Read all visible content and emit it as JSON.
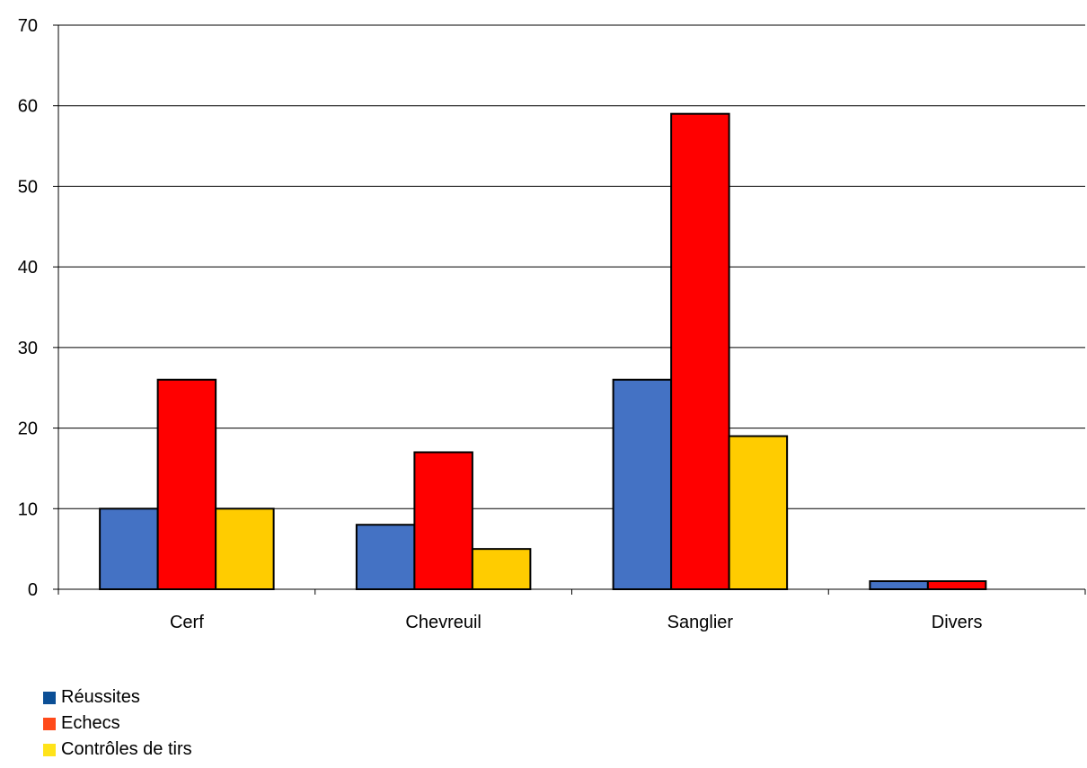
{
  "chart_data": {
    "type": "bar",
    "categories": [
      "Cerf",
      "Chevreuil",
      "Sanglier",
      "Divers"
    ],
    "series": [
      {
        "name": "Réussites",
        "values": [
          10,
          8,
          26,
          1
        ],
        "color": "#4472C4",
        "legend_color": "#0B4F96"
      },
      {
        "name": "Echecs",
        "values": [
          26,
          17,
          59,
          1
        ],
        "color": "#FF0000",
        "legend_color": "#FF4A1A"
      },
      {
        "name": "Contrôles de tirs",
        "values": [
          10,
          5,
          19,
          0
        ],
        "color": "#FFCC00",
        "legend_color": "#FFE31A"
      }
    ],
    "ylim": [
      0,
      70
    ],
    "yticks": [
      0,
      10,
      20,
      30,
      40,
      50,
      60,
      70
    ],
    "grid": true,
    "legend_position": "bottom-left",
    "title": "",
    "xlabel": "",
    "ylabel": ""
  }
}
